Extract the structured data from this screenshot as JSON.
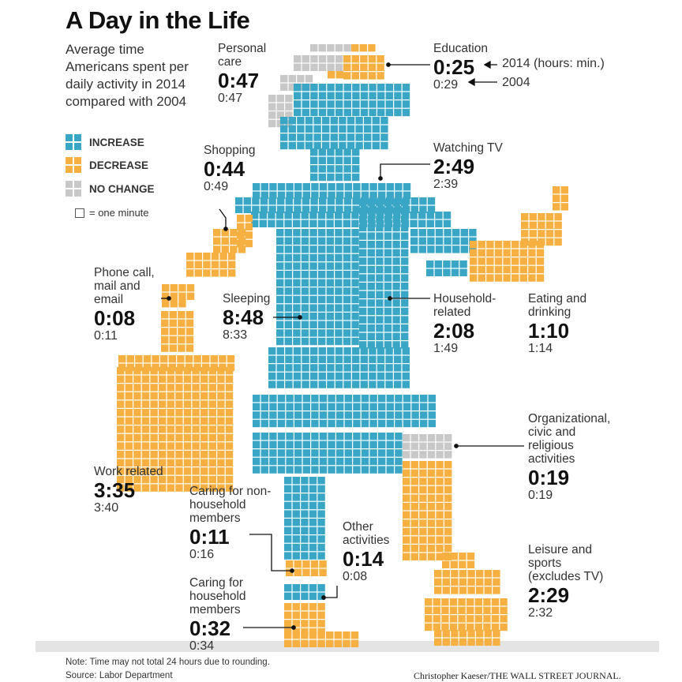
{
  "title": "A Day in the Life",
  "intro": "Average time Americans spent per daily activity in 2014 compared with 2004",
  "legend": {
    "increase": "INCREASE",
    "decrease": "DECREASE",
    "no_change": "NO CHANGE",
    "one_minute": "= one minute"
  },
  "colors": {
    "increase": "#3aa6c6",
    "decrease": "#f6b041",
    "no_change": "#c8c8c8",
    "text": "#222222"
  },
  "activities": {
    "personal_care": {
      "label": "Personal care",
      "t2014": "0:47",
      "t2004": "0:47",
      "status": "no_change"
    },
    "education": {
      "label": "Education",
      "t2014": "0:25",
      "t2004": "0:29",
      "status": "decrease",
      "note2014": "2014 (hours: min.)",
      "note2004": "2004"
    },
    "shopping": {
      "label": "Shopping",
      "t2014": "0:44",
      "t2004": "0:49",
      "status": "decrease"
    },
    "watching_tv": {
      "label": "Watching TV",
      "t2014": "2:49",
      "t2004": "2:39",
      "status": "increase"
    },
    "phone": {
      "label": "Phone call, mail and email",
      "t2014": "0:08",
      "t2004": "0:11",
      "status": "decrease"
    },
    "sleeping": {
      "label": "Sleeping",
      "t2014": "8:48",
      "t2004": "8:33",
      "status": "increase"
    },
    "household": {
      "label": "Household-related",
      "t2014": "2:08",
      "t2004": "1:49",
      "status": "increase"
    },
    "eating": {
      "label": "Eating and drinking",
      "t2014": "1:10",
      "t2004": "1:14",
      "status": "decrease"
    },
    "organizational": {
      "label": "Organizational, civic and religious activities",
      "t2014": "0:19",
      "t2004": "0:19",
      "status": "no_change"
    },
    "work": {
      "label": "Work related",
      "t2014": "3:35",
      "t2004": "3:40",
      "status": "decrease"
    },
    "caring_non_household": {
      "label": "Caring for non-household members",
      "t2014": "0:11",
      "t2004": "0:16",
      "status": "decrease"
    },
    "other": {
      "label": "Other activities",
      "t2014": "0:14",
      "t2004": "0:08",
      "status": "increase"
    },
    "caring_household": {
      "label": "Caring for household members",
      "t2014": "0:32",
      "t2004": "0:34",
      "status": "decrease"
    },
    "leisure": {
      "label": "Leisure and sports (excludes TV)",
      "t2014": "2:29",
      "t2004": "2:32",
      "status": "decrease"
    }
  },
  "note": "Note: Time may not total 24 hours due to rounding.",
  "source": "Source: Labor Department",
  "credit": "Christopher Kaeser/THE WALL STREET JOURNAL."
}
